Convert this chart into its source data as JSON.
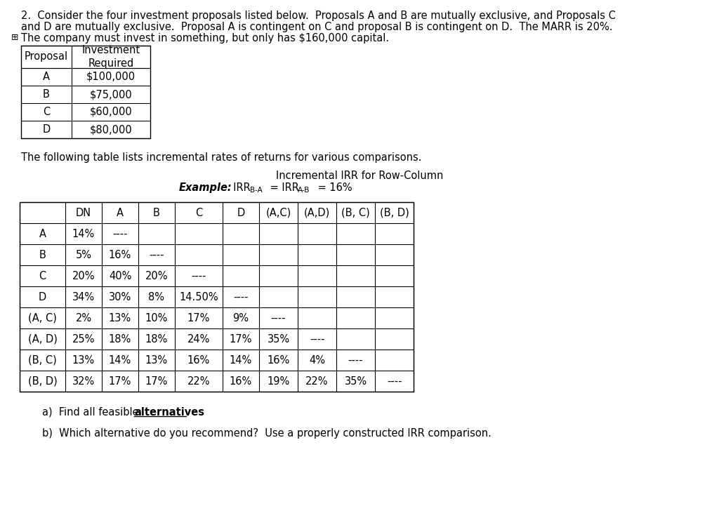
{
  "title_line1": "2.  Consider the four investment proposals listed below.  Proposals A and B are mutually exclusive, and Proposals C",
  "title_line2": "and D are mutually exclusive.  Proposal A is contingent on C and proposal B is contingent on D.  The MARR is 20%.",
  "title_line3": "The company must invest in something, but only has $160,000 capital.",
  "proposal_table": {
    "rows": [
      [
        "A",
        "$100,000"
      ],
      [
        "B",
        "$75,000"
      ],
      [
        "C",
        "$60,000"
      ],
      [
        "D",
        "$80,000"
      ]
    ]
  },
  "middle_text": "The following table lists incremental rates of returns for various comparisons.",
  "irr_title_line1": "Incremental IRR for Row-Column",
  "irr_table": {
    "col_headers": [
      "",
      "DN",
      "A",
      "B",
      "C",
      "D",
      "(A,C)",
      "(A,D)",
      "(B, C)",
      "(B, D)"
    ],
    "rows": [
      [
        "A",
        "14%",
        "----",
        "",
        "",
        "",
        "",
        "",
        "",
        ""
      ],
      [
        "B",
        "5%",
        "16%",
        "----",
        "",
        "",
        "",
        "",
        "",
        ""
      ],
      [
        "C",
        "20%",
        "40%",
        "20%",
        "----",
        "",
        "",
        "",
        "",
        ""
      ],
      [
        "D",
        "34%",
        "30%",
        "8%",
        "14.50%",
        "----",
        "",
        "",
        "",
        ""
      ],
      [
        "(A, C)",
        "2%",
        "13%",
        "10%",
        "17%",
        "9%",
        "----",
        "",
        "",
        ""
      ],
      [
        "(A, D)",
        "25%",
        "18%",
        "18%",
        "24%",
        "17%",
        "35%",
        "----",
        "",
        ""
      ],
      [
        "(B, C)",
        "13%",
        "14%",
        "13%",
        "16%",
        "14%",
        "16%",
        "4%",
        "----",
        ""
      ],
      [
        "(B, D)",
        "32%",
        "17%",
        "17%",
        "22%",
        "16%",
        "19%",
        "22%",
        "35%",
        "----"
      ]
    ]
  },
  "question_a_prefix": "a)  Find all feasible ",
  "question_a_bold": "alternatives",
  "question_b": "b)  Which alternative do you recommend?  Use a properly constructed IRR comparison.",
  "bg_color": "#ffffff",
  "text_color": "#000000"
}
